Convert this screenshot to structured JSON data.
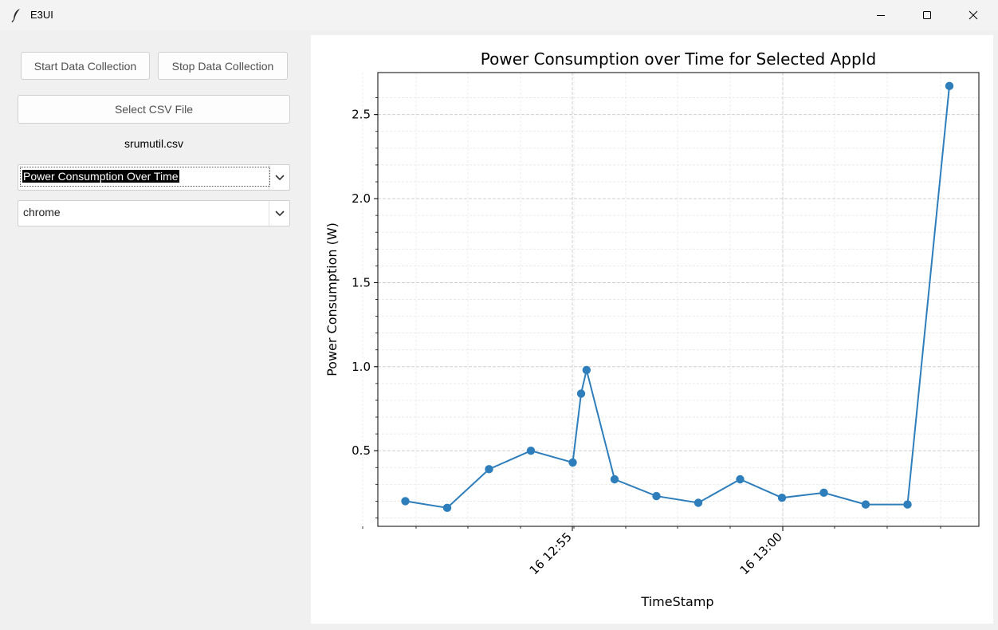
{
  "window": {
    "title": "E3UI",
    "icon": "feather-icon"
  },
  "controls": {
    "start_label": "Start Data Collection",
    "stop_label": "Stop Data Collection",
    "select_csv_label": "Select CSV File",
    "file_name": "srumutil.csv",
    "plot_type_value": "Power Consumption Over Time",
    "app_value": "chrome"
  },
  "chart_data": {
    "type": "line",
    "title": "Power Consumption over Time for Selected AppId",
    "xlabel": "TimeStamp",
    "ylabel": "Power Consumption (W)",
    "x": [
      "16 12:51",
      "16 12:52",
      "16 12:53",
      "16 12:54",
      "16 12:55",
      "16 12:55:12",
      "16 12:55:20",
      "16 12:56",
      "16 12:57",
      "16 12:58",
      "16 12:59",
      "16 13:00",
      "16 13:01",
      "16 13:02",
      "16 13:03",
      "16 13:04"
    ],
    "values": [
      0.2,
      0.16,
      0.39,
      0.5,
      0.43,
      0.84,
      0.98,
      0.33,
      0.23,
      0.19,
      0.33,
      0.22,
      0.25,
      0.18,
      0.18,
      2.67
    ],
    "xticks": [
      "16 12:55",
      "16 13:00"
    ],
    "yticks": [
      "0.5",
      "1.0",
      "1.5",
      "2.0",
      "2.5"
    ],
    "ylim": [
      0.05,
      2.75
    ],
    "grid": true,
    "line_color": "#2e7ebc"
  }
}
